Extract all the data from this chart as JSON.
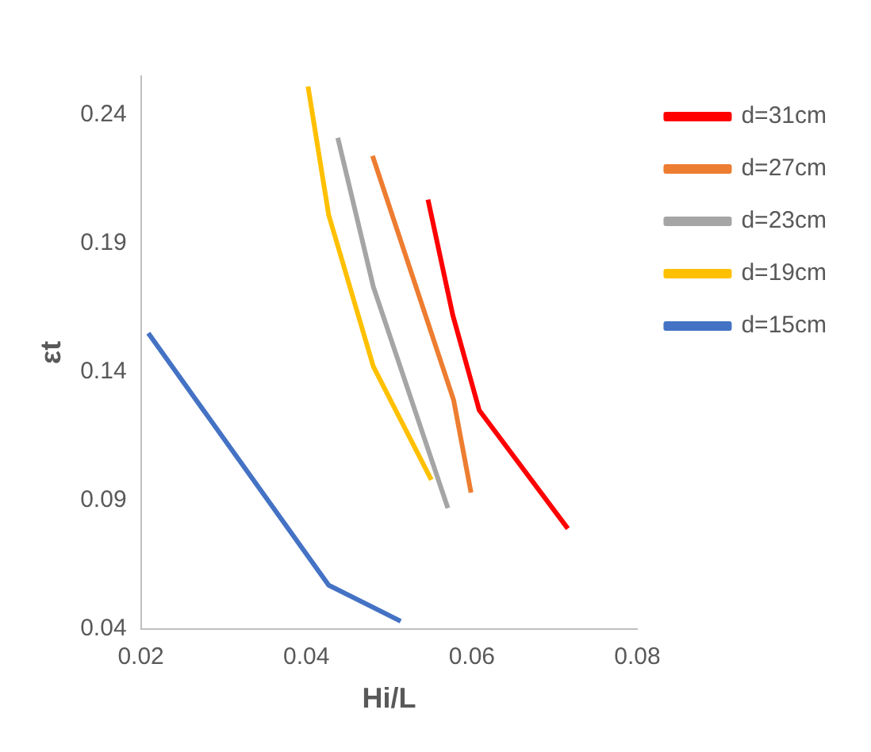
{
  "chart_data": {
    "type": "line",
    "xlabel": "Hi/L",
    "ylabel": "εt",
    "xlim": [
      0.02,
      0.08
    ],
    "xticks": [
      0.02,
      0.04,
      0.06,
      0.08
    ],
    "ylim": [
      0.04,
      0.255
    ],
    "yticks": [
      0.04,
      0.09,
      0.14,
      0.19,
      0.24
    ],
    "grid": false,
    "legend": "top right",
    "marker": "none",
    "series": [
      {
        "name": "d=31cm",
        "color": "#ff0000",
        "x": [
          0.0547,
          0.0577,
          0.0609,
          0.0716
        ],
        "values": [
          0.207,
          0.162,
          0.125,
          0.079
        ]
      },
      {
        "name": "d=27cm",
        "color": "#ed7d31",
        "x": [
          0.048,
          0.0578,
          0.0599
        ],
        "values": [
          0.224,
          0.129,
          0.093
        ]
      },
      {
        "name": "d=23cm",
        "color": "#a5a5a5",
        "x": [
          0.0438,
          0.0481,
          0.0571
        ],
        "values": [
          0.231,
          0.173,
          0.087
        ]
      },
      {
        "name": "d=19cm",
        "color": "#ffc000",
        "x": [
          0.0402,
          0.0427,
          0.0481,
          0.0551
        ],
        "values": [
          0.251,
          0.201,
          0.142,
          0.098
        ]
      },
      {
        "name": "d=15cm",
        "color": "#4472c4",
        "x": [
          0.0209,
          0.0427,
          0.0514
        ],
        "values": [
          0.155,
          0.057,
          0.043
        ]
      }
    ]
  }
}
